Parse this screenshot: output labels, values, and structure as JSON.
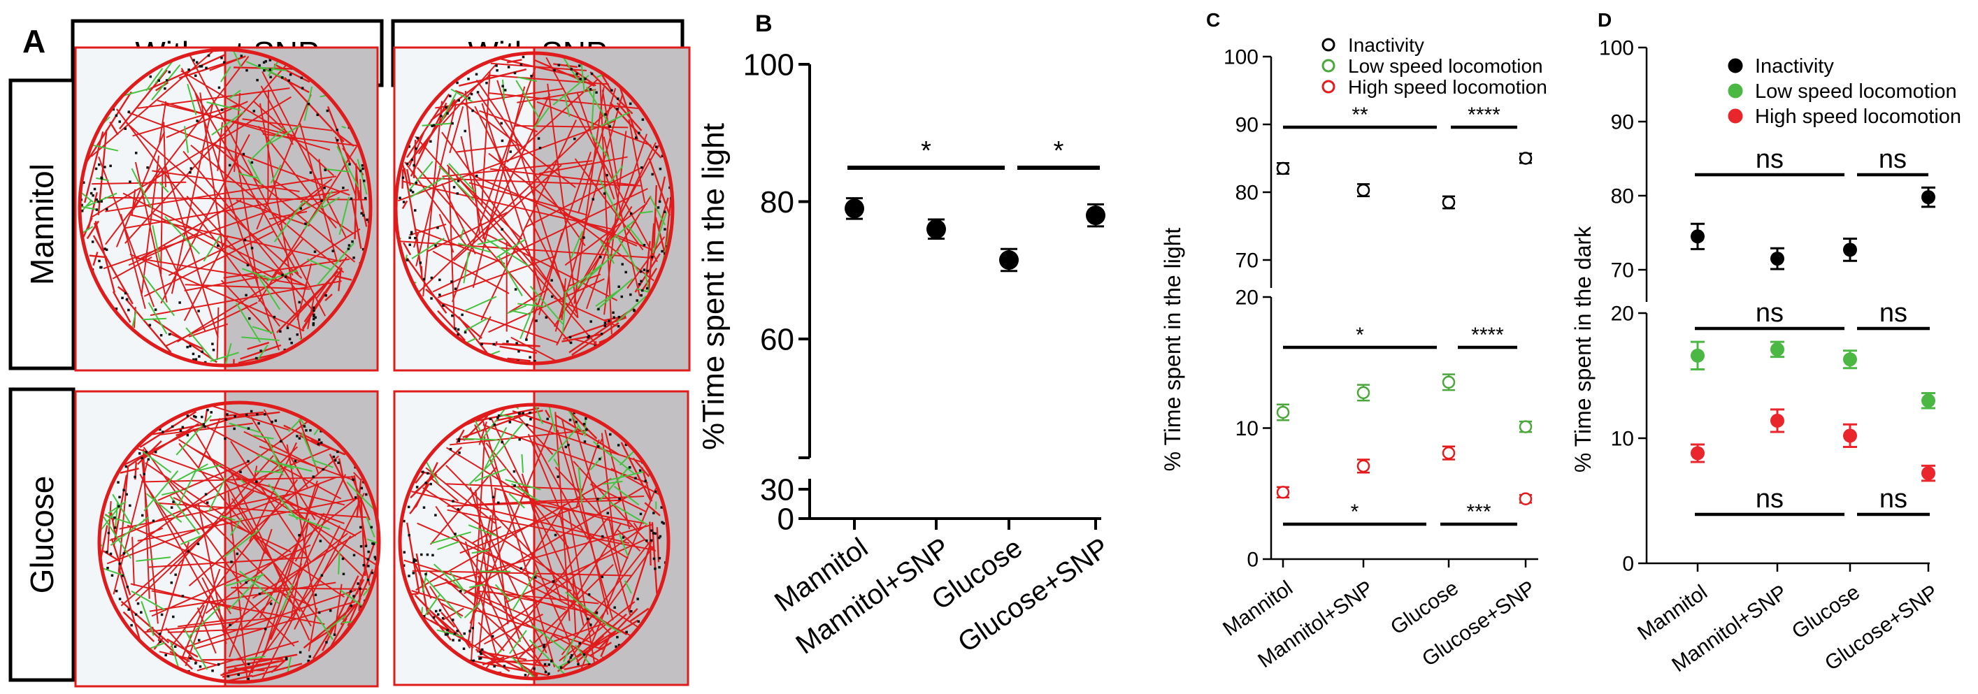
{
  "panel_a": {
    "label": "A",
    "col_headers": [
      "Without SNP",
      "With SNP"
    ],
    "row_headers": [
      "Mannitol",
      "Glucose"
    ],
    "colors": {
      "track": "#e01b1b",
      "low_speed": "#45c23e",
      "inactive": "#111111",
      "dark_zone": "#c2c0c2",
      "light_zone": "#f3f6f9"
    }
  },
  "chart_data": [
    {
      "panel": "B",
      "type": "scatter",
      "title": "",
      "xlabel": "",
      "ylabel": "%Time spent in the light",
      "categories": [
        "Mannitol",
        "Mannitol+SNP",
        "Glucose",
        "Glucose+SNP"
      ],
      "axis_ticks": [
        "100",
        "80",
        "60",
        "30",
        "0"
      ],
      "ylim": [
        0,
        100
      ],
      "broken_axis": true,
      "series": [
        {
          "values": [
            79,
            76,
            71.5,
            78
          ],
          "errors": [
            1.5,
            1.4,
            1.6,
            1.6
          ],
          "color": "#000000"
        }
      ],
      "annotations": [
        {
          "text": "*",
          "from": "Mannitol",
          "to": "Glucose"
        },
        {
          "text": "*",
          "from": "Glucose",
          "to": "Glucose+SNP"
        }
      ]
    },
    {
      "panel": "C",
      "type": "scatter",
      "title": "",
      "xlabel": "",
      "ylabel": "% Time spent in the light",
      "categories": [
        "Mannitol",
        "Mannitol+SNP",
        "Glucose",
        "Glucose+SNP"
      ],
      "axis_ticks": [
        "100",
        "90",
        "80",
        "70",
        "20",
        "10",
        "0"
      ],
      "ylim": [
        0,
        100
      ],
      "broken_axis": true,
      "legend": {
        "placement": "top",
        "entries": [
          "Inactivity",
          "Low speed locomotion",
          "High speed locomotion"
        ]
      },
      "series": [
        {
          "name": "Inactivity",
          "values": [
            83.5,
            80.3,
            78.5,
            85
          ],
          "errors": [
            0.8,
            0.9,
            0.9,
            0.7
          ],
          "color": "#000000",
          "marker": "open-circle"
        },
        {
          "name": "Low speed locomotion",
          "values": [
            11.2,
            12.7,
            13.5,
            10.1
          ],
          "errors": [
            0.6,
            0.6,
            0.6,
            0.4
          ],
          "color": "#4aa83a",
          "marker": "open-circle"
        },
        {
          "name": "High speed locomotion",
          "values": [
            5.1,
            7.1,
            8.1,
            4.6
          ],
          "errors": [
            0.4,
            0.5,
            0.5,
            0.3
          ],
          "color": "#e41a1c",
          "marker": "open-circle"
        }
      ],
      "annotations": [
        {
          "text": "**",
          "from": "Mannitol",
          "to": "Glucose",
          "series": "Inactivity"
        },
        {
          "text": "****",
          "from": "Glucose",
          "to": "Glucose+SNP",
          "series": "Inactivity"
        },
        {
          "text": "*",
          "from": "Mannitol",
          "to": "Glucose",
          "series": "Low speed locomotion"
        },
        {
          "text": "****",
          "from": "Glucose",
          "to": "Glucose+SNP",
          "series": "Low speed locomotion"
        },
        {
          "text": "*",
          "from": "Mannitol",
          "to": "Glucose",
          "series": "High speed locomotion"
        },
        {
          "text": "***",
          "from": "Glucose",
          "to": "Glucose+SNP",
          "series": "High speed locomotion"
        }
      ]
    },
    {
      "panel": "D",
      "type": "scatter",
      "title": "",
      "xlabel": "",
      "ylabel": "% Time spent in the dark",
      "categories": [
        "Mannitol",
        "Mannitol+SNP",
        "Glucose",
        "Glucose+SNP"
      ],
      "axis_ticks": [
        "100",
        "90",
        "80",
        "70",
        "20",
        "10",
        "0"
      ],
      "ylim": [
        0,
        100
      ],
      "broken_axis": true,
      "legend": {
        "placement": "top",
        "entries": [
          "Inactivity",
          "Low speed locomotion",
          "High speed locomotion"
        ]
      },
      "series": [
        {
          "name": "Inactivity",
          "values": [
            74.5,
            71.5,
            72.7,
            79.8
          ],
          "errors": [
            1.7,
            1.4,
            1.5,
            1.3
          ],
          "color": "#000000",
          "marker": "filled-circle"
        },
        {
          "name": "Low speed locomotion",
          "values": [
            16.6,
            17.1,
            16.3,
            13
          ],
          "errors": [
            1.1,
            0.6,
            0.7,
            0.6
          ],
          "color": "#4ab843",
          "marker": "filled-circle"
        },
        {
          "name": "High speed locomotion",
          "values": [
            8.8,
            11.4,
            10.2,
            7.2
          ],
          "errors": [
            0.7,
            0.9,
            0.9,
            0.6
          ],
          "color": "#e8262b",
          "marker": "filled-circle"
        }
      ],
      "annotations": [
        {
          "text": "ns",
          "from": "Mannitol",
          "to": "Glucose",
          "series": "Inactivity"
        },
        {
          "text": "ns",
          "from": "Glucose",
          "to": "Glucose+SNP",
          "series": "Inactivity"
        },
        {
          "text": "ns",
          "from": "Mannitol",
          "to": "Glucose",
          "series": "Low speed locomotion"
        },
        {
          "text": "ns",
          "from": "Glucose",
          "to": "Glucose+SNP",
          "series": "Low speed locomotion"
        },
        {
          "text": "ns",
          "from": "Mannitol",
          "to": "Glucose",
          "series": "High speed locomotion"
        },
        {
          "text": "ns",
          "from": "Glucose",
          "to": "Glucose+SNP",
          "series": "High speed locomotion"
        }
      ]
    }
  ]
}
